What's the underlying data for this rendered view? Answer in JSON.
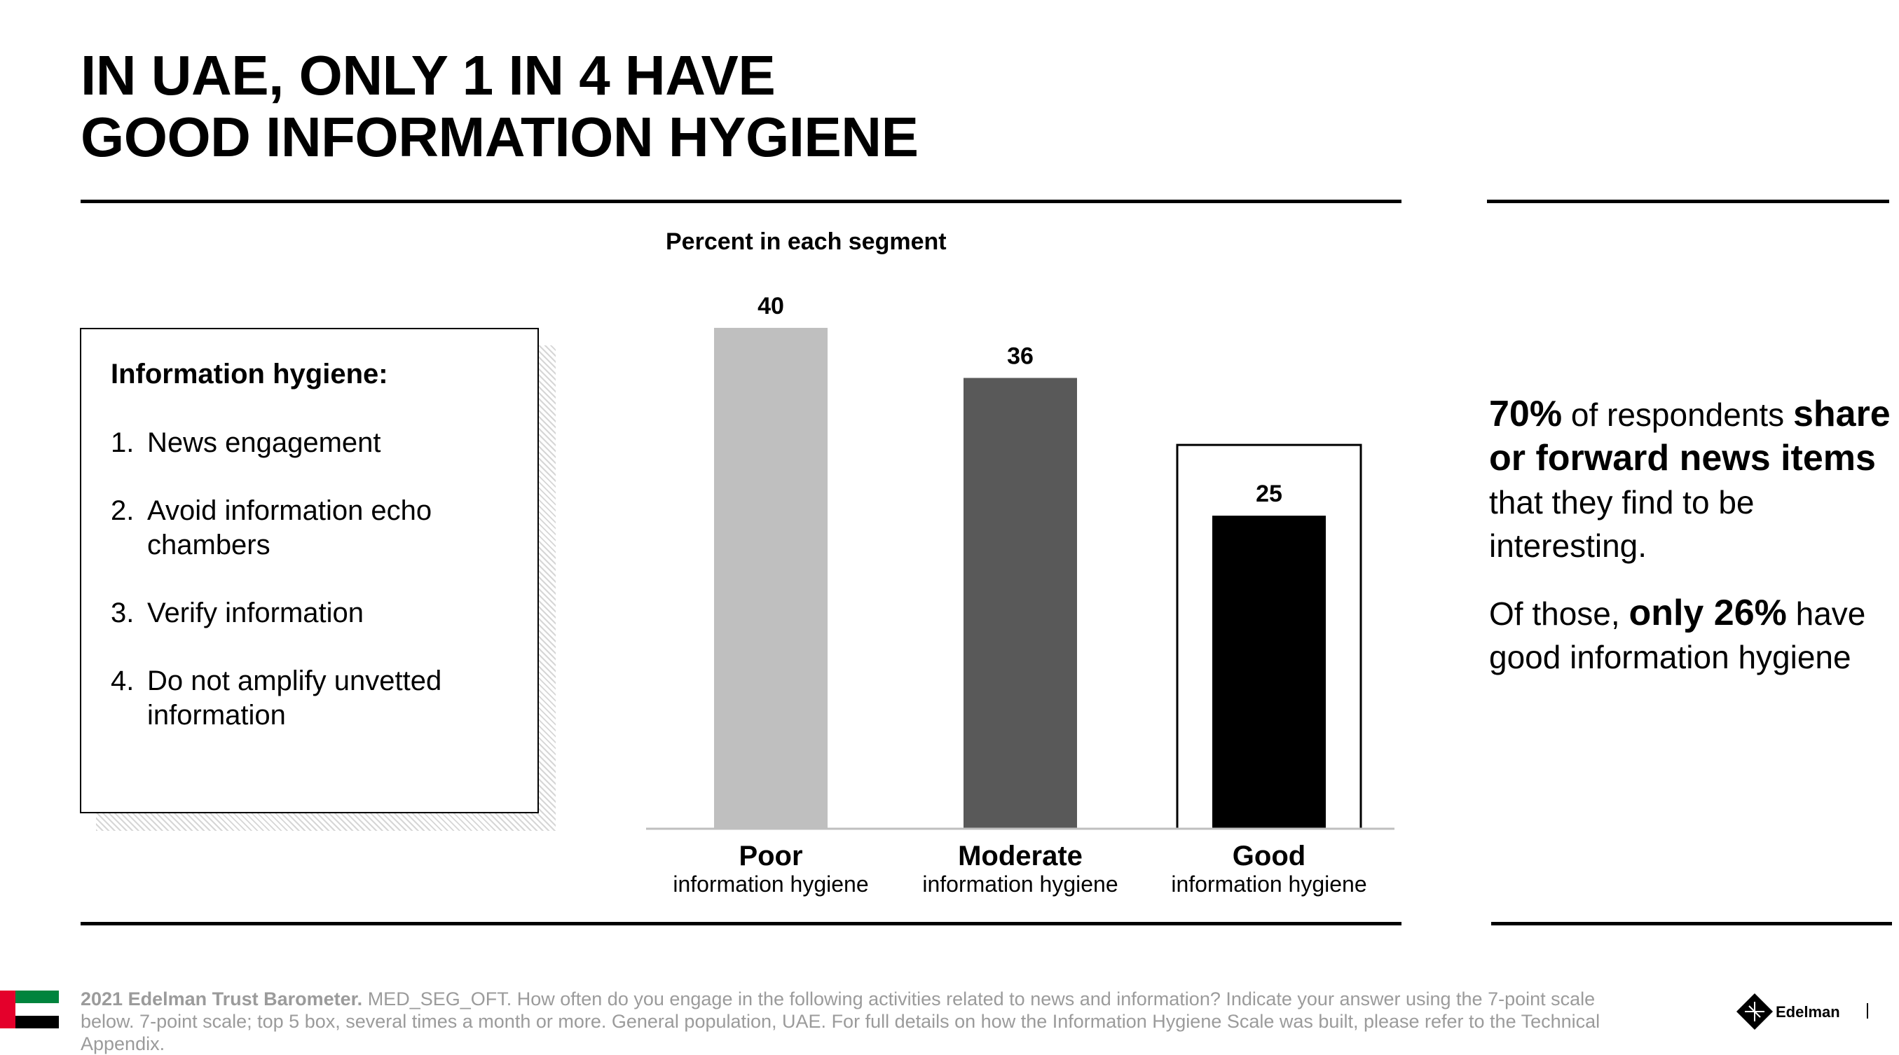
{
  "title": {
    "line1": "IN UAE, ONLY 1 IN 4 HAVE",
    "line2": "GOOD INFORMATION HYGIENE"
  },
  "hygiene_box": {
    "heading": "Information hygiene:",
    "items": [
      {
        "num": "1.",
        "text": "News engagement"
      },
      {
        "num": "2.",
        "text": "Avoid information echo chambers"
      },
      {
        "num": "3.",
        "text": "Verify information"
      },
      {
        "num": "4.",
        "text": "Do not amplify unvetted information"
      }
    ]
  },
  "chart_data": {
    "type": "bar",
    "title": "Percent in each segment",
    "categories": [
      "Poor",
      "Moderate",
      "Good"
    ],
    "category_subtitles": [
      "information hygiene",
      "information hygiene",
      "information hygiene"
    ],
    "values": [
      40,
      36,
      25
    ],
    "bar_colors": [
      "#bfbfbf",
      "#595959",
      "#000000"
    ],
    "highlighted_category": "Good",
    "ylim": [
      0,
      40
    ]
  },
  "callout": {
    "p1": {
      "b1": "70%",
      "t1": " of respondents ",
      "b2": "share or forward news items",
      "t2": " that they find to be interesting."
    },
    "p2": {
      "t1": "Of those, ",
      "b1": "only 26%",
      "t2": " have good information hygiene"
    }
  },
  "footnote": {
    "source_bold": "2021 Edelman Trust Barometer.",
    "text": " MED_SEG_OFT. How often do you engage in the following activities related to news and information? Indicate your answer using the 7-point scale below. 7-point scale; top 5 box, several times a month or more. General population, UAE. For full details on how the Information Hygiene Scale was built, please refer to the Technical Appendix."
  },
  "flag_icon": "uae-flag-icon",
  "logo": {
    "text": "Edelman",
    "icon": "edelman-logo-icon"
  },
  "colors": {
    "footnote": "#9b9b9b"
  }
}
